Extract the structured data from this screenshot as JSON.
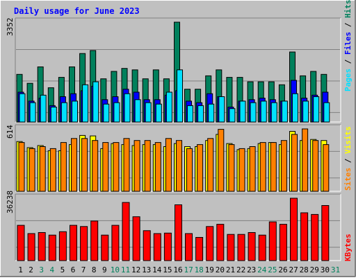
{
  "title": "Daily usage for June 2023",
  "colors": {
    "background": "#c0c0c0",
    "hits": "#00805c",
    "files": "#0000ff",
    "pages": "#00e0ff",
    "visits": "#ffff00",
    "sites": "#ff8000",
    "kbytes": "#ff0000",
    "title": "#0000ff",
    "weekend_day": "#00805c"
  },
  "legend": {
    "pages": "Pages",
    "files": "Files",
    "hits": "Hits",
    "sites": "Sites",
    "visits": "Visits",
    "kbytes": "KBytes",
    "sep": "/"
  },
  "chart_data": [
    {
      "type": "bar",
      "title": "Daily usage for June 2023",
      "panel": "hits-files-pages",
      "x": [
        1,
        2,
        3,
        4,
        5,
        6,
        7,
        8,
        9,
        10,
        11,
        12,
        13,
        14,
        15,
        16,
        17,
        18,
        19,
        20,
        21,
        22,
        23,
        24,
        25,
        26,
        27,
        28,
        29,
        30,
        31
      ],
      "y_max_label": "3352",
      "ylim": [
        0,
        3352
      ],
      "series": [
        {
          "name": "Hits",
          "values": [
            1600,
            1300,
            1850,
            1150,
            1500,
            1850,
            2300,
            2400,
            1450,
            1700,
            1800,
            1750,
            1450,
            1750,
            1450,
            3352,
            1100,
            1100,
            1550,
            1750,
            1500,
            1500,
            1350,
            1350,
            1350,
            1250,
            2350,
            1550,
            1700,
            1600,
            0
          ]
        },
        {
          "name": "Files",
          "values": [
            1000,
            700,
            800,
            550,
            850,
            950,
            1050,
            1200,
            750,
            850,
            1100,
            1000,
            750,
            750,
            900,
            1050,
            700,
            650,
            950,
            850,
            500,
            700,
            750,
            800,
            750,
            700,
            1400,
            800,
            900,
            1000,
            0
          ]
        },
        {
          "name": "Pages",
          "values": [
            950,
            650,
            900,
            500,
            650,
            700,
            1250,
            1350,
            600,
            650,
            950,
            750,
            650,
            600,
            1000,
            1750,
            550,
            550,
            600,
            850,
            450,
            700,
            650,
            700,
            650,
            700,
            950,
            700,
            850,
            650,
            0
          ]
        }
      ],
      "grid": true
    },
    {
      "type": "bar",
      "panel": "visits-sites",
      "x": [
        1,
        2,
        3,
        4,
        5,
        6,
        7,
        8,
        9,
        10,
        11,
        12,
        13,
        14,
        15,
        16,
        17,
        18,
        19,
        20,
        21,
        22,
        23,
        24,
        25,
        26,
        27,
        28,
        29,
        30,
        31
      ],
      "y_max_label": "614",
      "ylim": [
        0,
        614
      ],
      "series": [
        {
          "name": "Visits",
          "values": [
            490,
            430,
            450,
            400,
            400,
            460,
            550,
            545,
            420,
            470,
            460,
            450,
            460,
            460,
            440,
            470,
            440,
            440,
            500,
            560,
            470,
            410,
            420,
            470,
            480,
            460,
            590,
            500,
            510,
            500,
            0
          ]
        },
        {
          "name": "Sites",
          "values": [
            480,
            420,
            440,
            420,
            480,
            520,
            520,
            500,
            480,
            480,
            520,
            500,
            500,
            480,
            520,
            500,
            420,
            460,
            520,
            610,
            460,
            420,
            440,
            480,
            480,
            500,
            560,
            614,
            500,
            460,
            0
          ]
        }
      ],
      "grid": true
    },
    {
      "type": "bar",
      "panel": "kbytes",
      "x": [
        1,
        2,
        3,
        4,
        5,
        6,
        7,
        8,
        9,
        10,
        11,
        12,
        13,
        14,
        15,
        16,
        17,
        18,
        19,
        20,
        21,
        22,
        23,
        24,
        25,
        26,
        27,
        28,
        29,
        30,
        31
      ],
      "y_max_label": "36238",
      "ylim": [
        0,
        36238
      ],
      "series": [
        {
          "name": "KBytes",
          "values": [
            20500,
            15700,
            16300,
            14800,
            16800,
            20500,
            19800,
            23000,
            14800,
            20500,
            33800,
            25500,
            17400,
            15700,
            16000,
            32400,
            15700,
            13500,
            19800,
            21100,
            15200,
            15200,
            16300,
            14800,
            22500,
            21100,
            36238,
            27800,
            26800,
            32000,
            0
          ]
        }
      ],
      "grid": true
    }
  ]
}
